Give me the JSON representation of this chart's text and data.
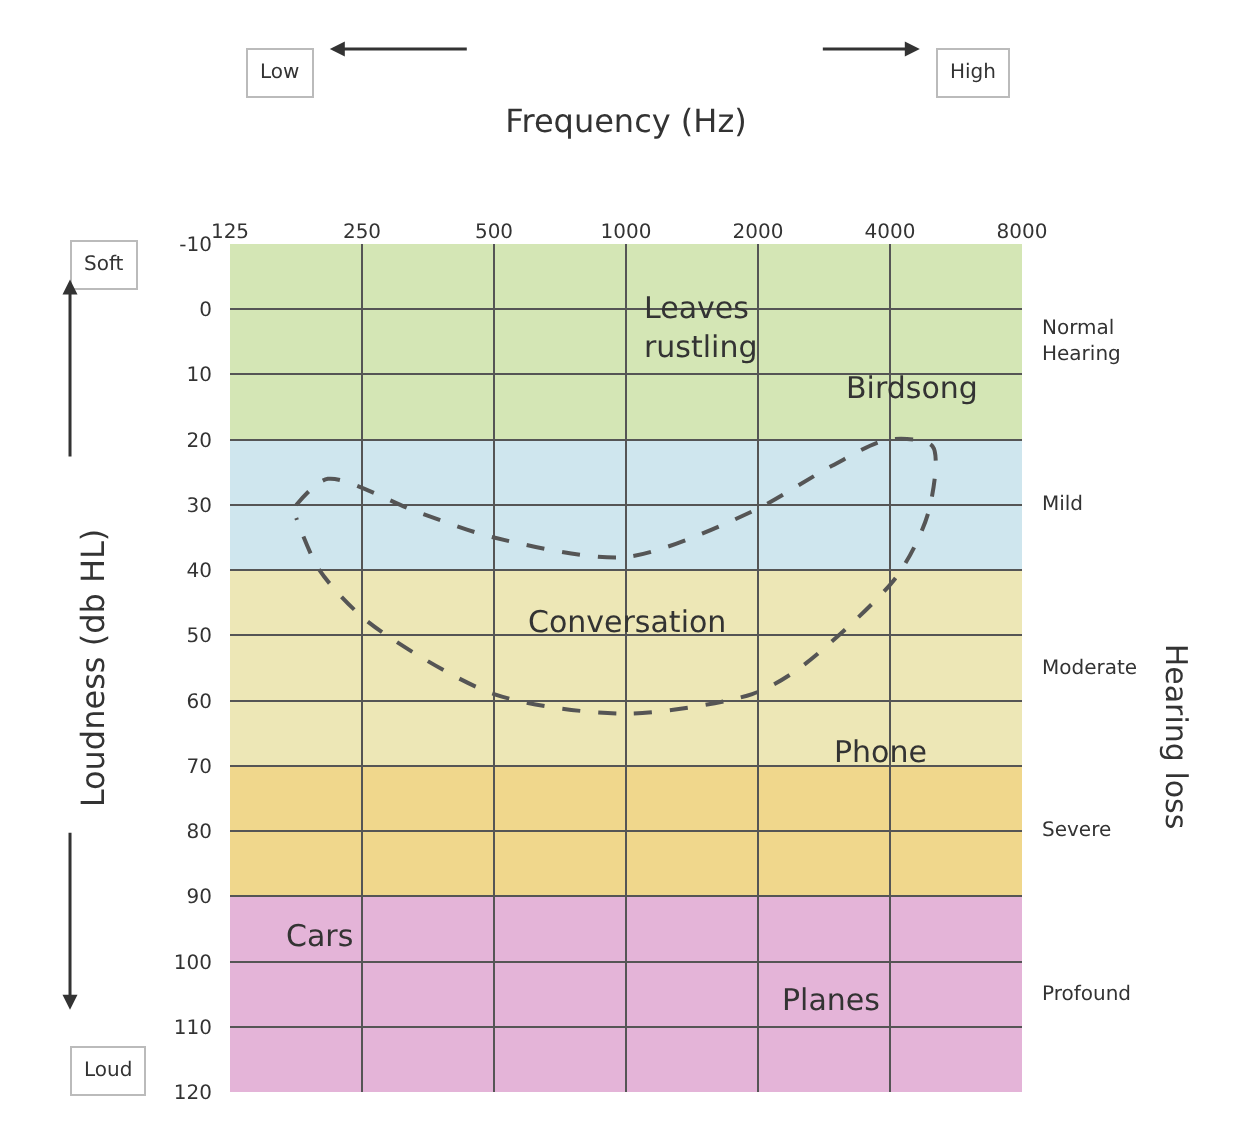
{
  "chart_data": {
    "type": "line",
    "xlabel": "Frequency (Hz)",
    "ylabel": "Loudness (db HL)",
    "log": "x",
    "xlim": [
      125,
      8000
    ],
    "xticks": [
      125,
      250,
      500,
      1000,
      2000,
      4000,
      8000
    ],
    "ylim": [
      120,
      -10
    ],
    "yticks": [
      -10,
      0,
      10,
      20,
      30,
      40,
      50,
      60,
      70,
      80,
      90,
      100,
      110,
      120
    ],
    "grid": true,
    "line_style": "dashed",
    "marker": "none",
    "series": [
      {
        "color": "#555555",
        "x": [
          177,
          209,
          332,
          500,
          1000,
          1940,
          2950,
          3950,
          5000,
          4900,
          4140,
          2490,
          1940,
          1000,
          500,
          259,
          200,
          177
        ],
        "values": [
          30,
          26,
          31,
          35,
          38,
          31,
          24,
          20,
          21,
          31,
          41,
          55,
          59,
          62,
          59,
          48,
          40,
          32
        ]
      }
    ],
    "bands": [
      {
        "axis": "y",
        "from": -10,
        "to": 20,
        "label": "Normal Hearing",
        "color": "#d4e6b5"
      },
      {
        "axis": "y",
        "from": 20,
        "to": 40,
        "label": "Mild",
        "color": "#cfe6ee"
      },
      {
        "axis": "y",
        "from": 40,
        "to": 70,
        "label": "Moderate",
        "color": "#ede7b6"
      },
      {
        "axis": "y",
        "from": 70,
        "to": 90,
        "label": "Severe",
        "color": "#f0d78c"
      },
      {
        "axis": "y",
        "from": 90,
        "to": 120,
        "label": "Profound",
        "color": "#e4b4d8"
      }
    ],
    "annotations": [
      "Leaves rustling",
      "Birdsong",
      "Conversation",
      "Phone",
      "Cars",
      "Planes",
      "Low",
      "High",
      "Soft",
      "Loud",
      "Hearing loss"
    ]
  }
}
